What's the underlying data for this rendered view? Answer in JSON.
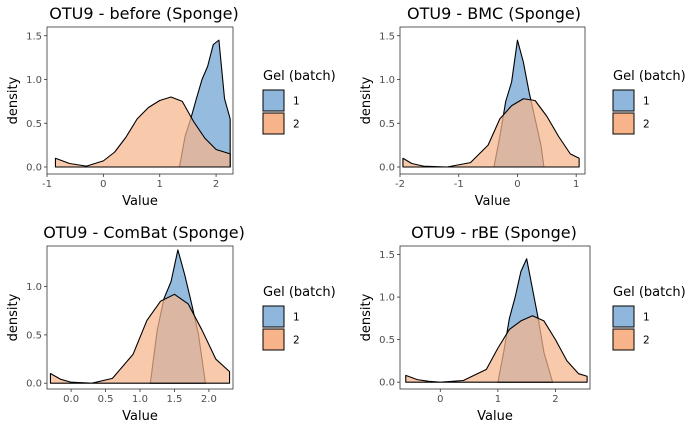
{
  "colors": {
    "batch1": "#8fb7dd",
    "batch2": "#f7b48a",
    "line": "#000000"
  },
  "chart_data": [
    {
      "type": "area",
      "title": "OTU9 - before (Sponge)",
      "xlabel": "Value",
      "ylabel": "density",
      "xlim": [
        -1.0,
        2.3
      ],
      "ylim": [
        -0.08,
        1.6
      ],
      "xticks": [
        -1,
        0,
        1,
        2
      ],
      "xtick_labels": [
        "-1",
        "0",
        "1",
        "2"
      ],
      "yticks": [
        0,
        0.5,
        1,
        1.5
      ],
      "ytick_labels": [
        "0.0",
        "0.5",
        "1.0",
        "1.5"
      ],
      "legend_title": "Gel (batch)",
      "legend_position": "right",
      "series": [
        {
          "name": "1",
          "color": "#8fb7dd",
          "x": [
            1.35,
            1.45,
            1.55,
            1.65,
            1.75,
            1.85,
            1.95,
            2.05,
            2.15,
            2.25
          ],
          "y": [
            0.0,
            0.35,
            0.55,
            0.78,
            1.0,
            1.15,
            1.4,
            1.45,
            0.78,
            0.55
          ]
        },
        {
          "name": "2",
          "color": "#f7b48a",
          "x": [
            -0.85,
            -0.6,
            -0.3,
            0.0,
            0.2,
            0.4,
            0.6,
            0.8,
            1.0,
            1.2,
            1.4,
            1.6,
            1.8,
            2.0,
            2.25
          ],
          "y": [
            0.1,
            0.04,
            0.01,
            0.07,
            0.17,
            0.34,
            0.55,
            0.68,
            0.76,
            0.8,
            0.75,
            0.52,
            0.33,
            0.2,
            0.15
          ]
        }
      ]
    },
    {
      "type": "area",
      "title": "OTU9 - BMC (Sponge)",
      "xlabel": "Value",
      "ylabel": "density",
      "xlim": [
        -2.0,
        1.15
      ],
      "ylim": [
        -0.08,
        1.6
      ],
      "xticks": [
        -2,
        -1,
        0,
        1
      ],
      "xtick_labels": [
        "-2",
        "-1",
        "0",
        "1"
      ],
      "yticks": [
        0,
        0.5,
        1,
        1.5
      ],
      "ytick_labels": [
        "0.0",
        "0.5",
        "1.0",
        "1.5"
      ],
      "legend_title": "Gel (batch)",
      "legend_position": "right",
      "series": [
        {
          "name": "1",
          "color": "#8fb7dd",
          "x": [
            -0.4,
            -0.3,
            -0.2,
            -0.1,
            0.0,
            0.1,
            0.2,
            0.3,
            0.4,
            0.45
          ],
          "y": [
            0.0,
            0.35,
            0.75,
            0.97,
            1.45,
            1.2,
            0.85,
            0.55,
            0.25,
            0.0
          ]
        },
        {
          "name": "2",
          "color": "#f7b48a",
          "x": [
            -1.95,
            -1.8,
            -1.6,
            -1.2,
            -0.8,
            -0.5,
            -0.3,
            -0.1,
            0.1,
            0.3,
            0.5,
            0.7,
            0.9,
            1.05
          ],
          "y": [
            0.1,
            0.04,
            0.01,
            0.0,
            0.05,
            0.25,
            0.55,
            0.7,
            0.78,
            0.76,
            0.58,
            0.35,
            0.15,
            0.1
          ]
        }
      ]
    },
    {
      "type": "area",
      "title": "OTU9 - ComBat (Sponge)",
      "xlabel": "Value",
      "ylabel": "density",
      "xlim": [
        -0.35,
        2.35
      ],
      "ylim": [
        -0.06,
        1.42
      ],
      "xticks": [
        0,
        0.5,
        1,
        1.5,
        2
      ],
      "xtick_labels": [
        "0.0",
        "0.5",
        "1.0",
        "1.5",
        "2.0"
      ],
      "yticks": [
        0,
        0.5,
        1
      ],
      "ytick_labels": [
        "0.0",
        "0.5",
        "1.0"
      ],
      "legend_title": "Gel (batch)",
      "legend_position": "right",
      "series": [
        {
          "name": "1",
          "color": "#8fb7dd",
          "x": [
            1.15,
            1.25,
            1.35,
            1.45,
            1.55,
            1.65,
            1.75,
            1.85,
            1.95
          ],
          "y": [
            0.0,
            0.55,
            0.88,
            1.05,
            1.38,
            1.12,
            0.82,
            0.5,
            0.0
          ]
        },
        {
          "name": "2",
          "color": "#f7b48a",
          "x": [
            -0.3,
            -0.15,
            0.0,
            0.3,
            0.6,
            0.9,
            1.1,
            1.3,
            1.5,
            1.7,
            1.9,
            2.1,
            2.3
          ],
          "y": [
            0.1,
            0.04,
            0.01,
            0.0,
            0.05,
            0.3,
            0.65,
            0.85,
            0.92,
            0.82,
            0.55,
            0.25,
            0.12
          ]
        }
      ]
    },
    {
      "type": "area",
      "title": "OTU9 - rBE (Sponge)",
      "xlabel": "Value",
      "ylabel": "density",
      "xlim": [
        -0.7,
        2.6
      ],
      "ylim": [
        -0.08,
        1.6
      ],
      "xticks": [
        0,
        1,
        2
      ],
      "xtick_labels": [
        "0",
        "1",
        "2"
      ],
      "yticks": [
        0,
        0.5,
        1,
        1.5
      ],
      "ytick_labels": [
        "0.0",
        "0.5",
        "1.0",
        "1.5"
      ],
      "legend_title": "Gel (batch)",
      "legend_position": "right",
      "series": [
        {
          "name": "1",
          "color": "#8fb7dd",
          "x": [
            1.0,
            1.1,
            1.2,
            1.3,
            1.4,
            1.5,
            1.6,
            1.7,
            1.8,
            1.95
          ],
          "y": [
            0.0,
            0.35,
            0.75,
            1.0,
            1.3,
            1.45,
            1.1,
            0.75,
            0.35,
            0.0
          ]
        },
        {
          "name": "2",
          "color": "#f7b48a",
          "x": [
            -0.6,
            -0.4,
            -0.2,
            0.0,
            0.4,
            0.8,
            1.0,
            1.2,
            1.4,
            1.6,
            1.8,
            2.0,
            2.2,
            2.4,
            2.55
          ],
          "y": [
            0.08,
            0.03,
            0.01,
            0.0,
            0.02,
            0.15,
            0.4,
            0.62,
            0.72,
            0.78,
            0.72,
            0.5,
            0.25,
            0.1,
            0.07
          ]
        }
      ]
    }
  ]
}
